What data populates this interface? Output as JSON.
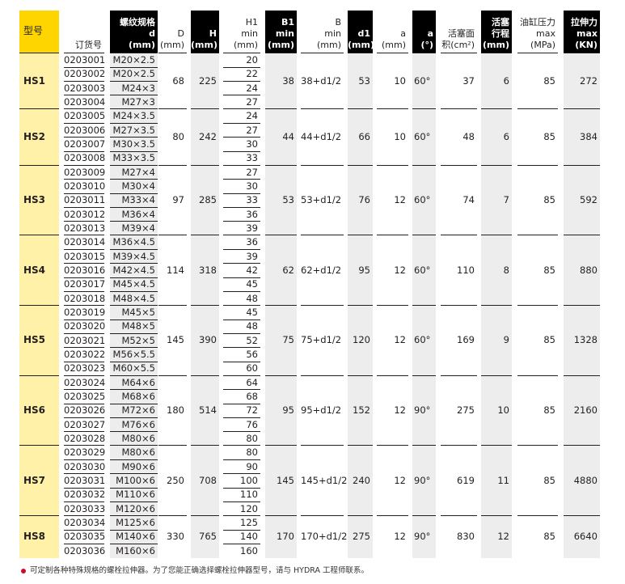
{
  "headers": [
    [
      "型号"
    ],
    [
      "订货号"
    ],
    [
      "螺纹规格",
      "d",
      "(mm)"
    ],
    [
      "D",
      "(mm)"
    ],
    [
      "H",
      "(mm)"
    ],
    [
      "H1",
      "min",
      "(mm)"
    ],
    [
      "B1",
      "min",
      "(mm)"
    ],
    [
      "B",
      "min",
      "(mm)"
    ],
    [
      "d1",
      "(mm)"
    ],
    [
      "a",
      "(mm)"
    ],
    [
      "a",
      "(°)"
    ],
    [
      "活塞面",
      "积(cm²)"
    ],
    [
      "活塞",
      "行程",
      "(mm)"
    ],
    [
      "油缸压力",
      "max",
      "(MPa)"
    ],
    [
      "拉伸力",
      "max",
      "(KN)"
    ]
  ],
  "groups": [
    {
      "model": "HS1",
      "D": "68",
      "H": "225",
      "B1": "38",
      "B": "38+d1/2",
      "d1": "53",
      "a_mm": "10",
      "a_deg": "60°",
      "area": "37",
      "stroke": "6",
      "pressure": "85",
      "force": "272",
      "rows": [
        [
          "0203001",
          "M20×2.5",
          "20"
        ],
        [
          "0203002",
          "M20×2.5",
          "22"
        ],
        [
          "0203003",
          "M24×3",
          "24"
        ],
        [
          "0203004",
          "M27×3",
          "27"
        ]
      ]
    },
    {
      "model": "HS2",
      "D": "80",
      "H": "242",
      "B1": "44",
      "B": "44+d1/2",
      "d1": "66",
      "a_mm": "10",
      "a_deg": "60°",
      "area": "48",
      "stroke": "6",
      "pressure": "85",
      "force": "384",
      "rows": [
        [
          "0203005",
          "M24×3.5",
          "24"
        ],
        [
          "0203006",
          "M27×3.5",
          "27"
        ],
        [
          "0203007",
          "M30×3.5",
          "30"
        ],
        [
          "0203008",
          "M33×3.5",
          "33"
        ]
      ]
    },
    {
      "model": "HS3",
      "D": "97",
      "H": "285",
      "B1": "53",
      "B": "53+d1/2",
      "d1": "76",
      "a_mm": "12",
      "a_deg": "60°",
      "area": "74",
      "stroke": "7",
      "pressure": "85",
      "force": "592",
      "rows": [
        [
          "0203009",
          "M27×4",
          "27"
        ],
        [
          "0203010",
          "M30×4",
          "30"
        ],
        [
          "0203011",
          "M33×4",
          "33"
        ],
        [
          "0203012",
          "M36×4",
          "36"
        ],
        [
          "0203013",
          "M39×4",
          "39"
        ]
      ]
    },
    {
      "model": "HS4",
      "D": "114",
      "H": "318",
      "B1": "62",
      "B": "62+d1/2",
      "d1": "95",
      "a_mm": "12",
      "a_deg": "60°",
      "area": "110",
      "stroke": "8",
      "pressure": "85",
      "force": "880",
      "rows": [
        [
          "0203014",
          "M36×4.5",
          "36"
        ],
        [
          "0203015",
          "M39×4.5",
          "39"
        ],
        [
          "0203016",
          "M42×4.5",
          "42"
        ],
        [
          "0203017",
          "M45×4.5",
          "45"
        ],
        [
          "0203018",
          "M48×4.5",
          "48"
        ]
      ]
    },
    {
      "model": "HS5",
      "D": "145",
      "H": "390",
      "B1": "75",
      "B": "75+d1/2",
      "d1": "120",
      "a_mm": "12",
      "a_deg": "60°",
      "area": "169",
      "stroke": "9",
      "pressure": "85",
      "force": "1328",
      "rows": [
        [
          "0203019",
          "M45×5",
          "45"
        ],
        [
          "0203020",
          "M48×5",
          "48"
        ],
        [
          "0203021",
          "M52×5",
          "52"
        ],
        [
          "0203022",
          "M56×5.5",
          "56"
        ],
        [
          "0203023",
          "M60×5.5",
          "60"
        ]
      ]
    },
    {
      "model": "HS6",
      "D": "180",
      "H": "514",
      "B1": "95",
      "B": "95+d1/2",
      "d1": "152",
      "a_mm": "12",
      "a_deg": "90°",
      "area": "275",
      "stroke": "10",
      "pressure": "85",
      "force": "2160",
      "rows": [
        [
          "0203024",
          "M64×6",
          "64"
        ],
        [
          "0203025",
          "M68×6",
          "68"
        ],
        [
          "0203026",
          "M72×6",
          "72"
        ],
        [
          "0203027",
          "M76×6",
          "76"
        ],
        [
          "0203028",
          "M80×6",
          "80"
        ]
      ]
    },
    {
      "model": "HS7",
      "D": "250",
      "H": "708",
      "B1": "145",
      "B": "145+d1/2",
      "d1": "240",
      "a_mm": "12",
      "a_deg": "90°",
      "area": "619",
      "stroke": "11",
      "pressure": "85",
      "force": "4880",
      "rows": [
        [
          "0203029",
          "M80×6",
          "80"
        ],
        [
          "0203030",
          "M90×6",
          "90"
        ],
        [
          "0203031",
          "M100×6",
          "100"
        ],
        [
          "0203032",
          "M110×6",
          "110"
        ],
        [
          "0203033",
          "M120×6",
          "120"
        ]
      ]
    },
    {
      "model": "HS8",
      "D": "330",
      "H": "765",
      "B1": "170",
      "B": "170+d1/2",
      "d1": "275",
      "a_mm": "12",
      "a_deg": "90°",
      "area": "830",
      "stroke": "12",
      "pressure": "85",
      "force": "6640",
      "rows": [
        [
          "0203034",
          "M125×6",
          "125"
        ],
        [
          "0203035",
          "M140×6",
          "140"
        ],
        [
          "0203036",
          "M160×6",
          "160"
        ]
      ]
    }
  ],
  "footnote": "可定制各种特殊规格的螺栓拉伸器。为了您能正确选择螺栓拉伸器型号，请与 HYDRA 工程师联系。",
  "colors": {
    "header_dark": "#000000",
    "model_header": "#ffd500",
    "model_body": "#fff2a8",
    "shaded_column": "#ededed",
    "bullet": "#c8102e"
  }
}
